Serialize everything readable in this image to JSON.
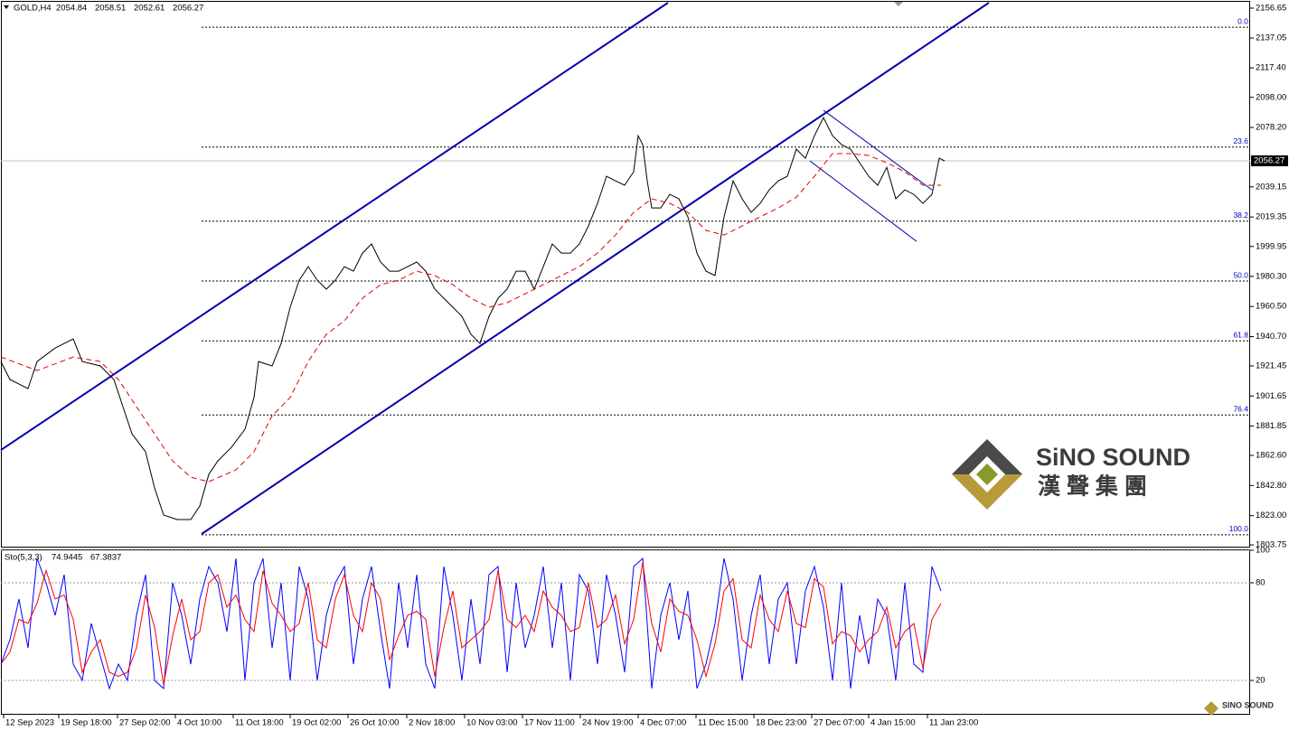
{
  "header": {
    "symbol": "GOLD,H4",
    "ohlc": [
      2054.84,
      2058.51,
      2052.61,
      2056.27
    ]
  },
  "logo": {
    "name": "SiNO SOUND",
    "chinese": "漢 聲 集 團",
    "small": "SINO SOUND"
  },
  "chart_data": [
    {
      "type": "line",
      "xlim": [
        0,
        691
      ],
      "ylim": [
        1802.6,
        2162.0
      ],
      "yticks": [
        2156.65,
        2137.05,
        {
          "value": 2117.4,
          "label": "2117.40"
        },
        {
          "value": 2098,
          "label": "2098.00"
        },
        {
          "value": 2078.2,
          "label": "2078.20"
        },
        2039.15,
        2019.35,
        1999.95,
        {
          "value": 1980.3,
          "label": "1980.30"
        },
        {
          "value": 1960.5,
          "label": "1960.50"
        },
        {
          "value": 1940.7,
          "label": "1940.70"
        },
        1921.45,
        1901.65,
        1881.85,
        {
          "value": 1862.6,
          "label": "1862.60"
        },
        {
          "value": 1842.8,
          "label": "1842.80"
        },
        {
          "value": 1823,
          "label": "1823.00"
        },
        1803.75
      ],
      "xticks": [
        {
          "value": 1.5,
          "label": "12 Sep 2023"
        },
        {
          "value": 32,
          "label": "19 Sep 18:00"
        },
        {
          "value": 64.5,
          "label": "27 Sep 02:00"
        },
        {
          "value": 96.5,
          "label": "4 Oct 10:00"
        },
        {
          "value": 128.5,
          "label": "11 Oct 18:00"
        },
        {
          "value": 160,
          "label": "19 Oct 02:00"
        },
        {
          "value": 192,
          "label": "26 Oct 10:00"
        },
        {
          "value": 224.5,
          "label": "2 Nov 18:00"
        },
        {
          "value": 256.5,
          "label": "10 Nov 03:00"
        },
        {
          "value": 288.5,
          "label": "17 Nov 11:00"
        },
        {
          "value": 320.5,
          "label": "24 Nov 19:00"
        },
        {
          "value": 352.5,
          "label": "4 Dec 07:00"
        },
        {
          "value": 384.5,
          "label": "11 Dec 15:00"
        },
        {
          "value": 416.5,
          "label": "18 Dec 23:00"
        },
        {
          "value": 448.5,
          "label": "27 Dec 07:00"
        },
        {
          "value": 480,
          "label": "4 Jan 15:00"
        },
        {
          "value": 512.5,
          "label": "11 Jan 23:00"
        }
      ],
      "last_price": 2056.27,
      "series": [
        {
          "color": "#000000",
          "x": [
            0,
            5,
            15,
            20,
            30,
            40,
            45,
            55,
            62.5,
            67.5,
            72.5,
            80,
            85,
            90,
            97.5,
            105,
            110,
            115,
            120,
            127.5,
            135,
            140,
            142.5,
            150,
            155,
            160,
            165,
            170,
            175,
            180,
            185,
            190,
            195,
            200,
            205,
            210,
            215,
            220,
            225,
            230,
            235,
            240,
            245,
            250,
            255,
            260,
            265,
            270,
            275,
            280,
            285,
            290,
            295,
            300,
            305,
            310,
            315,
            320,
            325,
            330,
            335,
            340,
            345,
            350,
            352.5,
            355,
            357.5,
            360,
            365,
            370,
            375,
            380,
            385,
            390,
            395,
            400,
            405,
            410,
            415,
            420,
            425,
            430,
            435,
            440,
            445,
            450,
            455,
            460,
            465,
            470,
            475,
            480,
            485,
            490,
            495,
            500,
            505,
            510,
            515,
            519,
            522
          ],
          "values": [
            1924.3,
            1912.5,
            1906.5,
            1924.3,
            1933.2,
            1939.2,
            1924.3,
            1921.4,
            1912.5,
            1894.6,
            1876.8,
            1865.0,
            1841.2,
            1823.4,
            1820.4,
            1820.4,
            1829.3,
            1850.1,
            1859.0,
            1867.9,
            1879.8,
            1900.6,
            1924.3,
            1921.4,
            1936.2,
            1960.0,
            1977.8,
            1986.7,
            1977.8,
            1971.9,
            1977.8,
            1986.7,
            1983.7,
            1995.6,
            2001.6,
            1989.7,
            1983.7,
            1983.7,
            1986.7,
            1989.7,
            1983.7,
            1971.9,
            1965.9,
            1960.0,
            1954.0,
            1942.2,
            1936.2,
            1954.0,
            1965.9,
            1971.9,
            1983.7,
            1983.7,
            1971.9,
            1986.7,
            2001.6,
            1995.6,
            1995.6,
            2001.6,
            2013.4,
            2028.3,
            2046.1,
            2043.1,
            2040.2,
            2049.1,
            2072.8,
            2066.9,
            2043.1,
            2025.3,
            2025.3,
            2034.2,
            2031.3,
            2019.4,
            1995.6,
            1983.7,
            1980.8,
            2019.4,
            2043.1,
            2031.3,
            2022.4,
            2028.3,
            2037.2,
            2043.1,
            2046.1,
            2063.9,
            2058.0,
            2072.8,
            2084.7,
            2072.8,
            2066.9,
            2063.9,
            2055.0,
            2046.1,
            2040.2,
            2052.0,
            2031.3,
            2037.2,
            2034.2,
            2028.3,
            2034.2,
            2058.0,
            2056.27
          ]
        },
        {
          "color": "#e00000",
          "dash": true,
          "x": [
            0,
            20,
            40,
            55,
            65,
            75,
            85,
            95,
            105,
            115,
            130,
            140,
            150,
            160,
            170,
            180,
            190,
            200,
            210,
            220,
            230,
            240,
            250,
            260,
            270,
            280,
            290,
            300,
            310,
            320,
            330,
            340,
            350,
            360,
            370,
            380,
            390,
            400,
            410,
            420,
            430,
            440,
            450,
            460,
            470,
            480,
            490,
            500,
            510,
            520
          ],
          "values": [
            1927.3,
            1918.4,
            1927.3,
            1924.3,
            1912.5,
            1894.6,
            1876.8,
            1859.0,
            1848.3,
            1845.3,
            1853.1,
            1865.0,
            1888.7,
            1900.6,
            1924.3,
            1942.2,
            1951.1,
            1965.9,
            1974.8,
            1977.8,
            1983.7,
            1980.8,
            1974.8,
            1965.9,
            1960.0,
            1963.0,
            1968.9,
            1974.8,
            1980.8,
            1986.7,
            1995.6,
            2007.5,
            2022.4,
            2031.3,
            2028.3,
            2022.4,
            2010.5,
            2007.5,
            2013.4,
            2019.4,
            2025.3,
            2032.4,
            2046.1,
            2061.0,
            2061.0,
            2059.8,
            2055.0,
            2049.1,
            2040.2,
            2040.2
          ]
        }
      ],
      "fib_start": 111,
      "fib_levels": [
        {
          "label": "0.0",
          "value": 2144.1
        },
        {
          "label": "23.6",
          "value": 2065.35
        },
        {
          "label": "38.2",
          "value": 2016.6
        },
        {
          "label": "50.0",
          "value": 1977.25
        },
        {
          "label": "61.8",
          "value": 1937.9
        },
        {
          "label": "76.4",
          "value": 1889.2
        },
        {
          "label": "100.0",
          "value": 1810.4
        }
      ],
      "trend_lines": [
        {
          "color": "#0000aa",
          "width": 2,
          "x": [
            0,
            369
          ],
          "values": [
            1866.1,
            2160.2
          ]
        },
        {
          "color": "#0000aa",
          "width": 2,
          "x": [
            111,
            546.5
          ],
          "values": [
            1810.9,
            2160.2
          ]
        },
        {
          "color": "#0000aa",
          "width": 1,
          "x": [
            455,
            515
          ],
          "values": [
            2089.5,
            2037.2
          ]
        },
        {
          "color": "#0000aa",
          "width": 1,
          "x": [
            447.5,
            506.5
          ],
          "values": [
            2056.2,
            2003.3
          ]
        }
      ]
    },
    {
      "type": "line",
      "label": "Sto(5,3,3)",
      "xlim": [
        0,
        691
      ],
      "ylim": [
        0,
        100
      ],
      "yticks": [
        100,
        80,
        20
      ],
      "x": [
        0,
        5,
        10,
        15,
        20,
        25,
        30,
        35,
        40,
        45,
        50,
        55,
        60,
        65,
        70,
        75,
        80,
        85,
        90,
        95,
        100,
        105,
        110,
        115,
        120,
        125,
        130,
        135,
        140,
        145,
        150,
        155,
        160,
        165,
        170,
        175,
        180,
        185,
        190,
        195,
        200,
        205,
        210,
        215,
        220,
        225,
        230,
        235,
        240,
        245,
        250,
        255,
        260,
        265,
        270,
        275,
        280,
        285,
        290,
        295,
        300,
        305,
        310,
        315,
        320,
        325,
        330,
        335,
        340,
        345,
        350,
        355,
        360,
        365,
        370,
        375,
        380,
        385,
        390,
        395,
        400,
        405,
        410,
        415,
        420,
        425,
        430,
        435,
        440,
        445,
        450,
        455,
        460,
        465,
        470,
        475,
        480,
        485,
        490,
        495,
        500,
        505,
        510,
        515,
        520
      ],
      "series": [
        {
          "color": "#0000ff",
          "values": [
            30,
            45,
            70,
            40,
            95,
            80,
            60,
            85,
            30,
            20,
            55,
            35,
            15,
            30,
            20,
            60,
            85,
            20,
            15,
            80,
            60,
            30,
            70,
            90,
            80,
            50,
            95,
            20,
            80,
            95,
            40,
            80,
            20,
            90,
            70,
            20,
            60,
            80,
            90,
            30,
            70,
            90,
            50,
            15,
            80,
            40,
            85,
            30,
            15,
            90,
            60,
            20,
            70,
            30,
            85,
            90,
            25,
            80,
            40,
            60,
            90,
            40,
            80,
            20,
            85,
            75,
            30,
            85,
            60,
            25,
            90,
            95,
            15,
            60,
            80,
            45,
            75,
            15,
            30,
            55,
            95,
            70,
            20,
            60,
            85,
            30,
            70,
            80,
            30,
            75,
            90,
            65,
            20,
            80,
            15,
            60,
            30,
            70,
            60,
            20,
            80,
            30,
            25,
            90,
            74.9445
          ]
        },
        {
          "color": "#ff0000",
          "values": [
            30,
            37.5,
            57.5,
            55,
            67.5,
            87.5,
            70,
            72.5,
            57.5,
            25,
            37.5,
            45,
            25,
            22.5,
            25,
            40,
            72.5,
            52.5,
            17.5,
            47.5,
            70,
            45,
            50,
            80,
            85,
            65,
            72.5,
            57.5,
            50,
            87.5,
            67.5,
            60,
            50,
            55,
            80,
            45,
            40,
            70,
            85,
            60,
            50,
            80,
            70,
            32.5,
            47.5,
            60,
            62.5,
            57.5,
            22.5,
            52.5,
            75,
            40,
            45,
            50,
            57.5,
            87.5,
            57.5,
            52.5,
            60,
            50,
            75,
            65,
            60,
            50,
            52.5,
            80,
            52.5,
            57.5,
            72.5,
            42.5,
            57.5,
            92.5,
            55,
            37.5,
            70,
            62.5,
            60,
            45,
            22.5,
            42.5,
            75,
            82.5,
            45,
            40,
            72.5,
            57.5,
            50,
            75,
            55,
            52.5,
            82.5,
            77.5,
            42.5,
            50,
            47.5,
            37.5,
            45,
            50,
            65,
            40,
            50,
            55,
            27.5,
            57.5,
            67.3837
          ]
        }
      ]
    }
  ]
}
